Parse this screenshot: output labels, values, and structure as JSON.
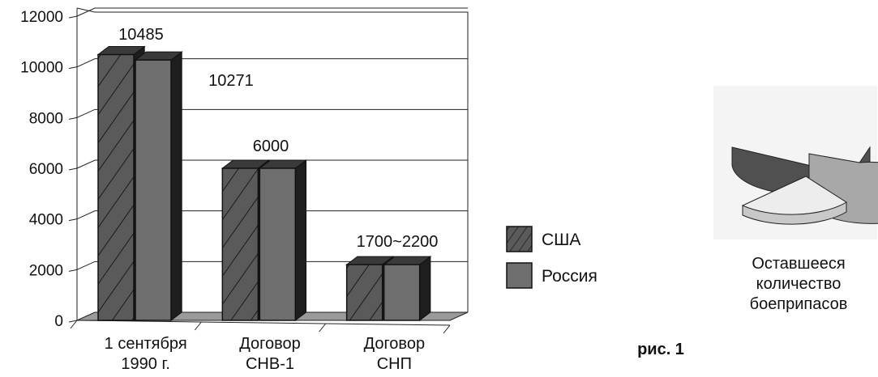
{
  "chart_data": {
    "type": "bar",
    "categories": [
      "1 сентября\n1990 г.",
      "Договор\nСНВ-1",
      "Договор\nСНП"
    ],
    "series": [
      {
        "name": "США",
        "values": [
          10485,
          6000,
          2200
        ]
      },
      {
        "name": "Россия",
        "values": [
          10271,
          6000,
          2200
        ]
      }
    ],
    "data_labels": [
      "10485",
      "10271",
      "6000",
      "1700~2200"
    ],
    "y_ticks": [
      "0",
      "2000",
      "4000",
      "6000",
      "8000",
      "10000",
      "12000"
    ],
    "ylim": [
      0,
      12000
    ],
    "grid": true,
    "legend_position": "right",
    "colors": {
      "usa": "#595959",
      "russia": "#6e6e6e",
      "dark_side": "#1e1e1e",
      "floor": "#9a9a9a"
    }
  },
  "inset": {
    "caption": "Оставшееся\nколичество\nбоеприпасов",
    "pie_colors": {
      "remaining": "#a8a8a8",
      "remaining_side": "#505050",
      "slice": "#ededed",
      "slice_side": "#c8c8c8"
    }
  },
  "figure_label": "рис. 1"
}
